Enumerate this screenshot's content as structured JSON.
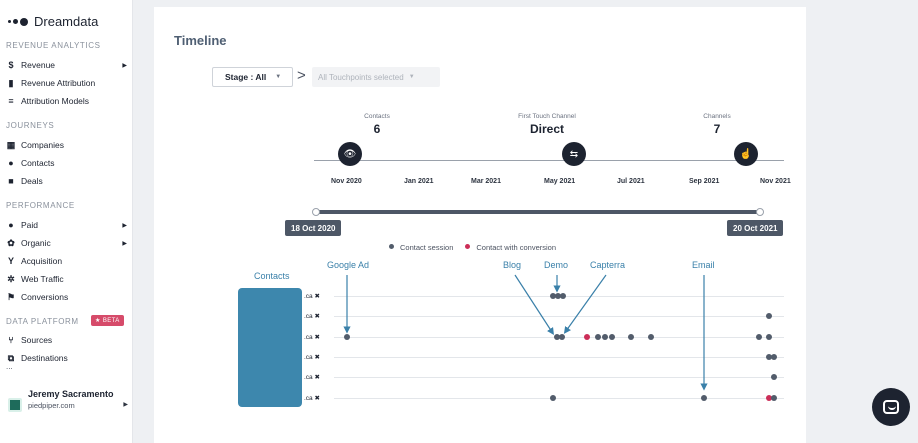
{
  "brand": {
    "name": "Dreamdata"
  },
  "sidebar": {
    "sections": [
      {
        "title": "REVENUE ANALYTICS",
        "items": [
          {
            "label": "Revenue",
            "icon": "$",
            "arrow": true
          },
          {
            "label": "Revenue Attribution",
            "icon": "▮",
            "arrow": false
          },
          {
            "label": "Attribution Models",
            "icon": "≡",
            "arrow": false
          }
        ]
      },
      {
        "title": "JOURNEYS",
        "items": [
          {
            "label": "Companies",
            "icon": "▦",
            "arrow": false
          },
          {
            "label": "Contacts",
            "icon": "●",
            "arrow": false
          },
          {
            "label": "Deals",
            "icon": "■",
            "arrow": false
          }
        ]
      },
      {
        "title": "PERFORMANCE",
        "items": [
          {
            "label": "Paid",
            "icon": "●",
            "arrow": true
          },
          {
            "label": "Organic",
            "icon": "✿",
            "arrow": true
          },
          {
            "label": "Acquisition",
            "icon": "Y",
            "arrow": false
          },
          {
            "label": "Web Traffic",
            "icon": "✲",
            "arrow": false
          },
          {
            "label": "Conversions",
            "icon": "⚑",
            "arrow": false
          }
        ]
      },
      {
        "title": "DATA PLATFORM",
        "items": [
          {
            "label": "Sources",
            "icon": "⑂",
            "arrow": false
          },
          {
            "label": "Destinations",
            "icon": "⧉",
            "arrow": false
          }
        ]
      }
    ],
    "beta_label": "★ BETA",
    "more_label": "...",
    "user": {
      "name": "Jeremy Sacramento",
      "org": "piedpiper.com"
    }
  },
  "main": {
    "title": "Timeline",
    "stage_select": {
      "value": "Stage : All"
    },
    "touchpoints_select": {
      "value": "All Touchpoints selected"
    },
    "stats": [
      {
        "label": "Contacts",
        "value": "6"
      },
      {
        "label": "First Touch Channel",
        "value": "Direct"
      },
      {
        "label": "Channels",
        "value": "7"
      }
    ],
    "timeline_months": [
      "Nov 2020",
      "Jan 2021",
      "Mar 2021",
      "May 2021",
      "Jul 2021",
      "Sep 2021",
      "Nov 2021"
    ],
    "range": {
      "start": "18 Oct 2020",
      "end": "20 Oct 2021"
    },
    "legend": {
      "session": "Contact session",
      "conversion": "Contact with conversion",
      "session_color": "#525c6b",
      "conversion_color": "#cc2e58"
    },
    "contacts_label": "Contacts",
    "row_suffix": ".ca ✖",
    "annotations": [
      "Google Ad",
      "Blog",
      "Demo",
      "Capterra",
      "Email"
    ]
  }
}
